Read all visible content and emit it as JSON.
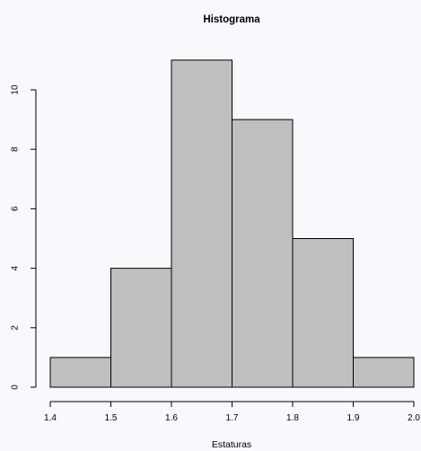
{
  "chart_data": {
    "type": "bar",
    "title": "Histograma",
    "xlabel": "Estaturas",
    "ylabel": "",
    "bins": [
      {
        "from": 1.4,
        "to": 1.5,
        "count": 1
      },
      {
        "from": 1.5,
        "to": 1.6,
        "count": 4
      },
      {
        "from": 1.6,
        "to": 1.7,
        "count": 11
      },
      {
        "from": 1.7,
        "to": 1.8,
        "count": 9
      },
      {
        "from": 1.8,
        "to": 1.9,
        "count": 5
      },
      {
        "from": 1.9,
        "to": 2.0,
        "count": 1
      }
    ],
    "x_ticks": [
      "1.4",
      "1.5",
      "1.6",
      "1.7",
      "1.8",
      "1.9",
      "2.0"
    ],
    "y_ticks": [
      "0",
      "2",
      "4",
      "6",
      "8",
      "10"
    ],
    "xlim": [
      1.4,
      2.0
    ],
    "ylim": [
      0,
      11
    ],
    "grid": false,
    "colors": {
      "bar_fill": "#bfbfbf",
      "bar_stroke": "#000000",
      "background": "#f7f9fc"
    }
  }
}
